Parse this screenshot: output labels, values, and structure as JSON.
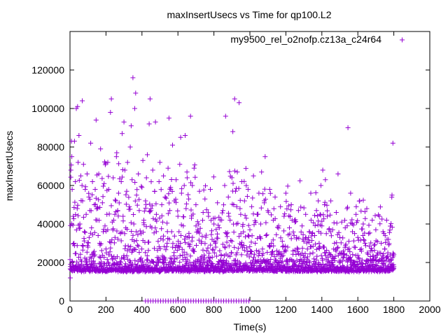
{
  "chart_data": {
    "type": "scatter",
    "title": "maxInsertUsecs vs Time for qp100.L2",
    "xlabel": "Time(s)",
    "ylabel": "maxInsertUsecs",
    "xlim": [
      0,
      2000
    ],
    "ylim": [
      0,
      140000
    ],
    "x_ticks": [
      0,
      200,
      400,
      600,
      800,
      1000,
      1200,
      1400,
      1600,
      1800,
      2000
    ],
    "y_ticks": [
      0,
      20000,
      40000,
      60000,
      80000,
      100000,
      120000
    ],
    "x_tick_labels": [
      "0",
      "200",
      "400",
      "600",
      "800",
      "1000",
      "1200",
      "1400",
      "1600",
      "1800",
      "2000"
    ],
    "y_tick_labels": [
      "0",
      "20000",
      "40000",
      "60000",
      "80000",
      "100000",
      "120000"
    ],
    "legend_position": "top-right",
    "grid": false,
    "series": [
      {
        "name": "my9500_rel_o2nofp.cz13a_c24r64",
        "color": "#9400d3",
        "marker": "+",
        "x_range": [
          0,
          1800
        ],
        "baseline_band": [
          13000,
          21000
        ],
        "upper_max": 116000,
        "points": [
          [
            2,
            12000
          ],
          [
            5,
            68000
          ],
          [
            8,
            83000
          ],
          [
            10,
            75000
          ],
          [
            12,
            58000
          ],
          [
            18,
            44000
          ],
          [
            22,
            30000
          ],
          [
            25,
            83000
          ],
          [
            30,
            62000
          ],
          [
            35,
            100000
          ],
          [
            40,
            48000
          ],
          [
            42,
            101000
          ],
          [
            45,
            72000
          ],
          [
            50,
            86000
          ],
          [
            55,
            40000
          ],
          [
            60,
            65000
          ],
          [
            68,
            104000
          ],
          [
            70,
            52000
          ],
          [
            75,
            71000
          ],
          [
            80,
            36000
          ],
          [
            85,
            58000
          ],
          [
            90,
            45000
          ],
          [
            95,
            66000
          ],
          [
            100,
            28000
          ],
          [
            105,
            54000
          ],
          [
            110,
            47000
          ],
          [
            115,
            82000
          ],
          [
            120,
            38000
          ],
          [
            125,
            62000
          ],
          [
            130,
            25000
          ],
          [
            135,
            50000
          ],
          [
            140,
            58000
          ],
          [
            145,
            94000
          ],
          [
            150,
            42000
          ],
          [
            160,
            66000
          ],
          [
            165,
            30000
          ],
          [
            170,
            79000
          ],
          [
            180,
            51000
          ],
          [
            185,
            36000
          ],
          [
            190,
            61000
          ],
          [
            200,
            27000
          ],
          [
            205,
            45000
          ],
          [
            210,
            72000
          ],
          [
            215,
            58000
          ],
          [
            225,
            98000
          ],
          [
            230,
            105000
          ],
          [
            235,
            41000
          ],
          [
            240,
            64000
          ],
          [
            250,
            33000
          ],
          [
            255,
            52000
          ],
          [
            260,
            77000
          ],
          [
            265,
            47000
          ],
          [
            270,
            56000
          ],
          [
            280,
            35000
          ],
          [
            285,
            62000
          ],
          [
            290,
            87000
          ],
          [
            295,
            44000
          ],
          [
            300,
            93000
          ],
          [
            305,
            68000
          ],
          [
            310,
            38000
          ],
          [
            315,
            57000
          ],
          [
            320,
            72000
          ],
          [
            330,
            49000
          ],
          [
            335,
            80000
          ],
          [
            340,
            91000
          ],
          [
            345,
            63000
          ],
          [
            350,
            116000
          ],
          [
            355,
            40000
          ],
          [
            360,
            100000
          ],
          [
            365,
            108000
          ],
          [
            370,
            55000
          ],
          [
            375,
            29000
          ],
          [
            380,
            66000
          ],
          [
            385,
            47000
          ],
          [
            395,
            35000
          ],
          [
            400,
            59000
          ],
          [
            405,
            73000
          ],
          [
            410,
            42000
          ],
          [
            420,
            52000
          ],
          [
            425,
            64000
          ],
          [
            430,
            76000
          ],
          [
            440,
            92000
          ],
          [
            445,
            105000
          ],
          [
            450,
            48000
          ],
          [
            455,
            38000
          ],
          [
            460,
            68000
          ],
          [
            470,
            57000
          ],
          [
            475,
            93000
          ],
          [
            480,
            45000
          ],
          [
            490,
            31000
          ],
          [
            495,
            62000
          ],
          [
            500,
            72000
          ],
          [
            510,
            50000
          ],
          [
            515,
            41000
          ],
          [
            520,
            65000
          ],
          [
            530,
            54000
          ],
          [
            540,
            30000
          ],
          [
            545,
            69000
          ],
          [
            550,
            95000
          ],
          [
            555,
            47000
          ],
          [
            560,
            58000
          ],
          [
            565,
            36000
          ],
          [
            570,
            81000
          ],
          [
            580,
            52000
          ],
          [
            590,
            63000
          ],
          [
            600,
            44000
          ],
          [
            605,
            28000
          ],
          [
            610,
            71000
          ],
          [
            615,
            85000
          ],
          [
            620,
            56000
          ],
          [
            630,
            39000
          ],
          [
            635,
            60000
          ],
          [
            640,
            86000
          ],
          [
            645,
            48000
          ],
          [
            650,
            67000
          ],
          [
            655,
            33000
          ],
          [
            660,
            53000
          ],
          [
            670,
            96000
          ],
          [
            675,
            43000
          ],
          [
            680,
            60000
          ],
          [
            685,
            27000
          ],
          [
            690,
            69000
          ],
          [
            700,
            50000
          ],
          [
            710,
            37000
          ],
          [
            720,
            57000
          ],
          [
            730,
            30000
          ],
          [
            740,
            46000
          ],
          [
            750,
            53000
          ],
          [
            760,
            26000
          ],
          [
            770,
            44000
          ],
          [
            780,
            58000
          ],
          [
            790,
            32000
          ],
          [
            800,
            40000
          ],
          [
            810,
            28000
          ],
          [
            820,
            51000
          ],
          [
            830,
            38000
          ],
          [
            840,
            24000
          ],
          [
            850,
            47000
          ],
          [
            860,
            60000
          ],
          [
            865,
            96000
          ],
          [
            870,
            35000
          ],
          [
            880,
            54000
          ],
          [
            890,
            42000
          ],
          [
            900,
            31000
          ],
          [
            905,
            88000
          ],
          [
            910,
            50000
          ],
          [
            915,
            105000
          ],
          [
            920,
            57000
          ],
          [
            925,
            40000
          ],
          [
            930,
            67000
          ],
          [
            940,
            103000
          ],
          [
            945,
            48000
          ],
          [
            950,
            35000
          ],
          [
            955,
            62000
          ],
          [
            960,
            28000
          ],
          [
            970,
            52000
          ],
          [
            980,
            43000
          ],
          [
            990,
            58000
          ],
          [
            1000,
            37000
          ],
          [
            1010,
            49000
          ],
          [
            1020,
            65000
          ],
          [
            1030,
            30000
          ],
          [
            1040,
            45000
          ],
          [
            1050,
            56000
          ],
          [
            1060,
            40000
          ],
          [
            1065,
            67000
          ],
          [
            1070,
            27000
          ],
          [
            1080,
            51000
          ],
          [
            1085,
            75000
          ],
          [
            1090,
            34000
          ],
          [
            1100,
            47000
          ],
          [
            1110,
            58000
          ],
          [
            1120,
            30000
          ],
          [
            1130,
            42000
          ],
          [
            1140,
            54000
          ],
          [
            1150,
            26000
          ],
          [
            1160,
            39000
          ],
          [
            1170,
            49000
          ],
          [
            1180,
            31000
          ],
          [
            1190,
            44000
          ],
          [
            1200,
            56000
          ],
          [
            1210,
            28000
          ],
          [
            1220,
            38000
          ],
          [
            1230,
            50000
          ],
          [
            1240,
            26000
          ],
          [
            1250,
            41000
          ],
          [
            1260,
            33000
          ],
          [
            1270,
            47000
          ],
          [
            1280,
            24000
          ],
          [
            1290,
            39000
          ],
          [
            1300,
            31000
          ],
          [
            1310,
            45000
          ],
          [
            1320,
            27000
          ],
          [
            1330,
            36000
          ],
          [
            1340,
            42000
          ],
          [
            1350,
            25000
          ],
          [
            1360,
            34000
          ],
          [
            1370,
            47000
          ],
          [
            1380,
            52000
          ],
          [
            1385,
            30000
          ],
          [
            1390,
            45000
          ],
          [
            1395,
            60000
          ],
          [
            1400,
            39000
          ],
          [
            1405,
            68000
          ],
          [
            1410,
            28000
          ],
          [
            1415,
            50000
          ],
          [
            1420,
            63000
          ],
          [
            1425,
            35000
          ],
          [
            1430,
            44000
          ],
          [
            1440,
            25000
          ],
          [
            1450,
            52000
          ],
          [
            1460,
            37000
          ],
          [
            1470,
            30000
          ],
          [
            1480,
            46000
          ],
          [
            1490,
            66000
          ],
          [
            1500,
            33000
          ],
          [
            1510,
            41000
          ],
          [
            1520,
            26000
          ],
          [
            1530,
            38000
          ],
          [
            1540,
            48000
          ],
          [
            1545,
            90000
          ],
          [
            1550,
            31000
          ],
          [
            1560,
            56000
          ],
          [
            1570,
            36000
          ],
          [
            1580,
            28000
          ],
          [
            1590,
            45000
          ],
          [
            1600,
            33000
          ],
          [
            1610,
            52000
          ],
          [
            1620,
            27000
          ],
          [
            1630,
            40000
          ],
          [
            1640,
            30000
          ],
          [
            1650,
            48000
          ],
          [
            1660,
            35000
          ],
          [
            1670,
            26000
          ],
          [
            1680,
            42000
          ],
          [
            1690,
            29000
          ],
          [
            1700,
            37000
          ],
          [
            1710,
            25000
          ],
          [
            1720,
            44000
          ],
          [
            1730,
            30000
          ],
          [
            1740,
            36000
          ],
          [
            1750,
            27000
          ],
          [
            1760,
            42000
          ],
          [
            1770,
            32000
          ],
          [
            1780,
            24000
          ],
          [
            1790,
            55000
          ],
          [
            1795,
            82000
          ],
          [
            1800,
            17000
          ]
        ]
      }
    ]
  }
}
